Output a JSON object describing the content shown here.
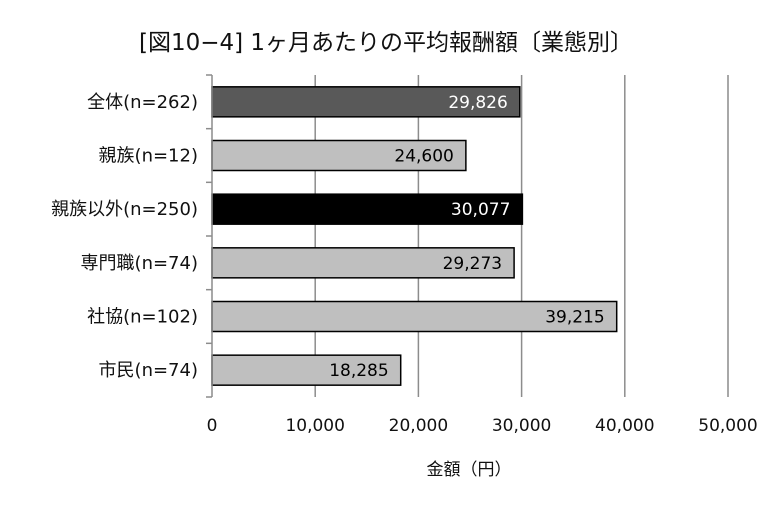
{
  "chart_data": {
    "type": "bar",
    "orientation": "horizontal",
    "title": "[図10−4] 1ヶ月あたりの平均報酬額〔業態別〕",
    "xlabel": "金額（円）",
    "ylabel": "",
    "xlim": [
      0,
      50000
    ],
    "xticks": [
      0,
      10000,
      20000,
      30000,
      40000,
      50000
    ],
    "xtick_labels": [
      "0",
      "10,000",
      "20,000",
      "30,000",
      "40,000",
      "50,000"
    ],
    "grid": "vertical",
    "categories": [
      "全体(n=262)",
      "親族(n=12)",
      "親族以外(n=250)",
      "専門職(n=74)",
      "社協(n=102)",
      "市民(n=74)"
    ],
    "values": [
      29826,
      24600,
      30077,
      29273,
      39215,
      18285
    ],
    "value_labels": [
      "29,826",
      "24,600",
      "30,077",
      "29,273",
      "39,215",
      "18,285"
    ],
    "bar_colors": [
      "#595959",
      "#bfbfbf",
      "#000000",
      "#bfbfbf",
      "#bfbfbf",
      "#bfbfbf"
    ],
    "label_colors": [
      "#ffffff",
      "#000000",
      "#ffffff",
      "#000000",
      "#000000",
      "#000000"
    ]
  }
}
